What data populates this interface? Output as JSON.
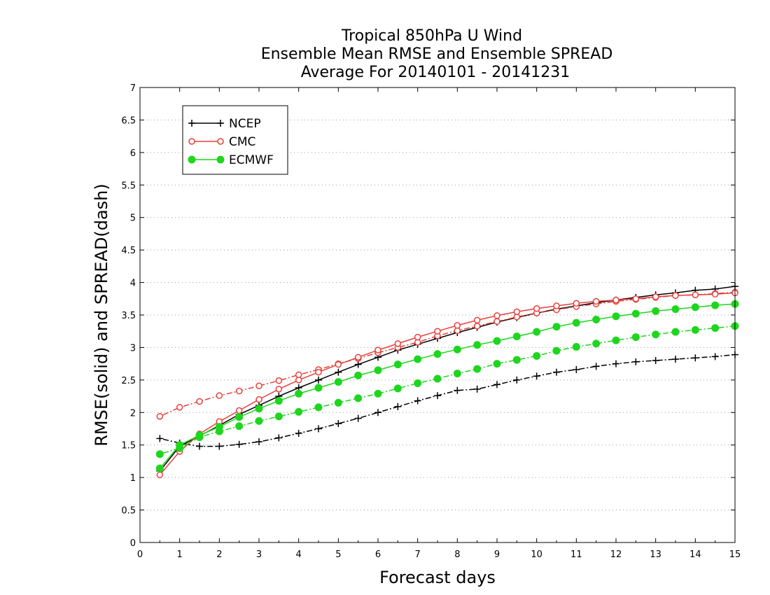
{
  "chart_data": {
    "type": "line",
    "title": [
      "Tropical 850hPa U Wind",
      "Ensemble Mean RMSE and Ensemble SPREAD",
      "Average For 20140101 - 20141231"
    ],
    "xlabel": "Forecast days",
    "ylabel": "RMSE(solid) and SPREAD(dash)",
    "xlim": [
      0,
      15
    ],
    "ylim": [
      0,
      7
    ],
    "xticks": [
      "0",
      "1",
      "2",
      "3",
      "4",
      "5",
      "6",
      "7",
      "8",
      "9",
      "10",
      "11",
      "12",
      "13",
      "14",
      "15"
    ],
    "yticks": [
      "0",
      "0.5",
      "1",
      "1.5",
      "2",
      "2.5",
      "3",
      "3.5",
      "4",
      "4.5",
      "5",
      "5.5",
      "6",
      "6.5",
      "7"
    ],
    "grid": "horizontal dotted",
    "legend_position": "top-left",
    "x": [
      0.5,
      1,
      1.5,
      2,
      2.5,
      3,
      3.5,
      4,
      4.5,
      5,
      5.5,
      6,
      6.5,
      7,
      7.5,
      8,
      8.5,
      9,
      9.5,
      10,
      10.5,
      11,
      11.5,
      12,
      12.5,
      13,
      13.5,
      14,
      14.5,
      15
    ],
    "series": [
      {
        "name": "NCEP",
        "color": "#000000",
        "marker": "plus",
        "rmse": [
          1.1,
          1.48,
          1.64,
          1.8,
          1.97,
          2.11,
          2.25,
          2.38,
          2.5,
          2.62,
          2.74,
          2.85,
          2.96,
          3.05,
          3.14,
          3.23,
          3.31,
          3.39,
          3.46,
          3.53,
          3.59,
          3.64,
          3.69,
          3.73,
          3.77,
          3.81,
          3.84,
          3.88,
          3.9,
          3.94
        ],
        "spread": [
          1.6,
          1.53,
          1.48,
          1.48,
          1.51,
          1.55,
          1.61,
          1.68,
          1.75,
          1.83,
          1.91,
          2.0,
          2.09,
          2.18,
          2.26,
          2.34,
          2.36,
          2.43,
          2.5,
          2.56,
          2.62,
          2.66,
          2.71,
          2.75,
          2.78,
          2.8,
          2.82,
          2.84,
          2.86,
          2.89
        ]
      },
      {
        "name": "CMC",
        "color": "#e8403c",
        "marker": "open-circle",
        "rmse": [
          1.04,
          1.4,
          1.67,
          1.86,
          2.03,
          2.2,
          2.36,
          2.5,
          2.62,
          2.74,
          2.85,
          2.96,
          3.06,
          3.16,
          3.25,
          3.34,
          3.42,
          3.49,
          3.55,
          3.6,
          3.64,
          3.68,
          3.71,
          3.73,
          3.75,
          3.78,
          3.8,
          3.81,
          3.82,
          3.84
        ],
        "spread": [
          1.94,
          2.08,
          2.17,
          2.26,
          2.33,
          2.41,
          2.49,
          2.58,
          2.66,
          2.75,
          2.83,
          2.92,
          3.0,
          3.08,
          3.18,
          3.26,
          3.33,
          3.4,
          3.47,
          3.53,
          3.58,
          3.63,
          3.67,
          3.71,
          3.74,
          3.77,
          3.8,
          3.81,
          3.83,
          3.85
        ]
      },
      {
        "name": "ECMWF",
        "color": "#1ed61e",
        "marker": "filled-circle",
        "rmse": [
          1.14,
          1.5,
          1.65,
          1.78,
          1.93,
          2.06,
          2.18,
          2.29,
          2.38,
          2.47,
          2.57,
          2.65,
          2.74,
          2.82,
          2.9,
          2.97,
          3.04,
          3.1,
          3.17,
          3.24,
          3.32,
          3.38,
          3.43,
          3.48,
          3.52,
          3.56,
          3.59,
          3.62,
          3.65,
          3.67
        ],
        "spread": [
          1.36,
          1.45,
          1.62,
          1.71,
          1.79,
          1.87,
          1.94,
          2.01,
          2.08,
          2.15,
          2.22,
          2.29,
          2.37,
          2.45,
          2.52,
          2.6,
          2.67,
          2.75,
          2.81,
          2.87,
          2.95,
          3.01,
          3.06,
          3.11,
          3.16,
          3.2,
          3.24,
          3.27,
          3.3,
          3.33
        ]
      }
    ]
  }
}
